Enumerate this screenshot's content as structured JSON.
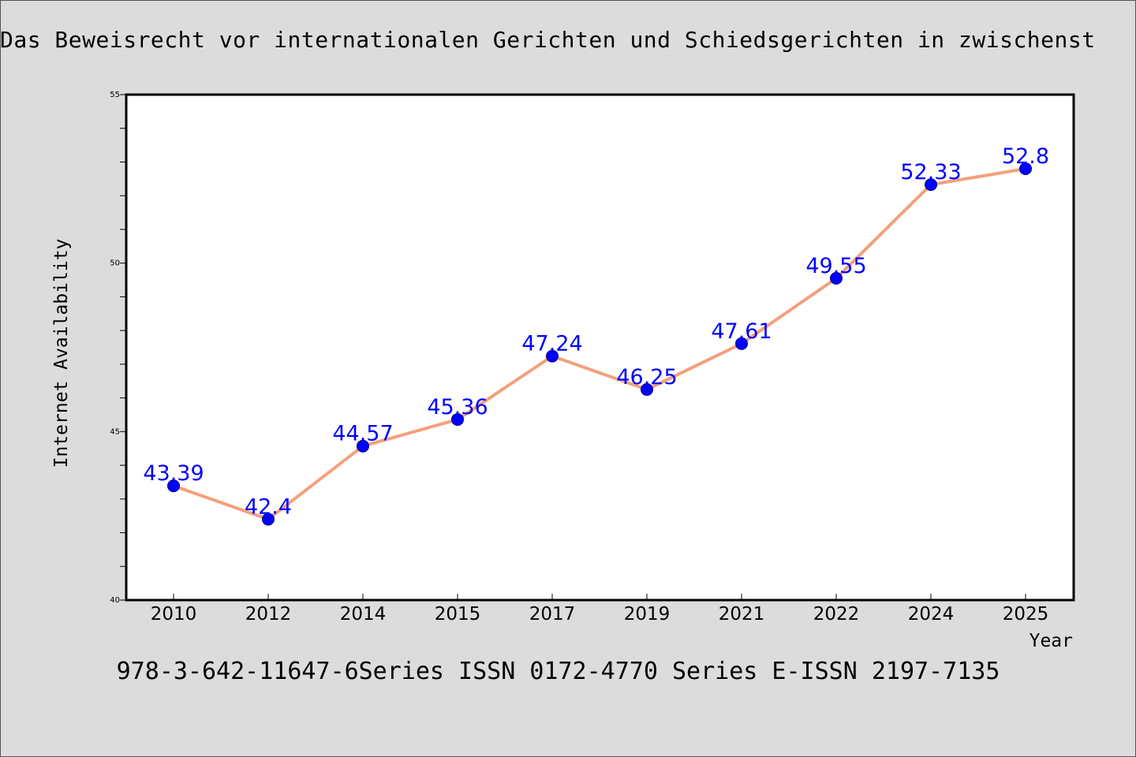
{
  "page": {
    "title": "Das Beweisrecht vor internationalen Gerichten und Schiedsgerichten in zwischenst",
    "subtitle": "978-3-642-11647-6Series ISSN 0172-4770 Series E-ISSN 2197-7135"
  },
  "colors": {
    "background": "#dcdcdc",
    "plot_background": "#ffffff",
    "line": "#f4a07c",
    "marker": "#0000ff",
    "data_label": "#0000ff"
  },
  "chart_data": {
    "type": "line",
    "title": "Das Beweisrecht vor internationalen Gerichten und Schiedsgerichten in zwischenst",
    "xlabel": "Year",
    "ylabel": "Internet Availability",
    "categories": [
      "2010",
      "2012",
      "2014",
      "2015",
      "2017",
      "2019",
      "2021",
      "2022",
      "2024",
      "2025"
    ],
    "series": [
      {
        "values": [
          43.39,
          42.4,
          44.57,
          45.36,
          47.24,
          46.25,
          47.61,
          49.55,
          52.33,
          52.8
        ]
      }
    ],
    "data_labels": [
      "43.39",
      "42.4",
      "44.57",
      "45.36",
      "47.24",
      "46.25",
      "47.61",
      "49.55",
      "52.33",
      "52.8"
    ],
    "ylim": [
      40,
      55
    ],
    "y_major_ticks": [
      40,
      45,
      50,
      55
    ],
    "y_minor_step": 1,
    "grid": false,
    "legend": "none",
    "markers": true
  }
}
